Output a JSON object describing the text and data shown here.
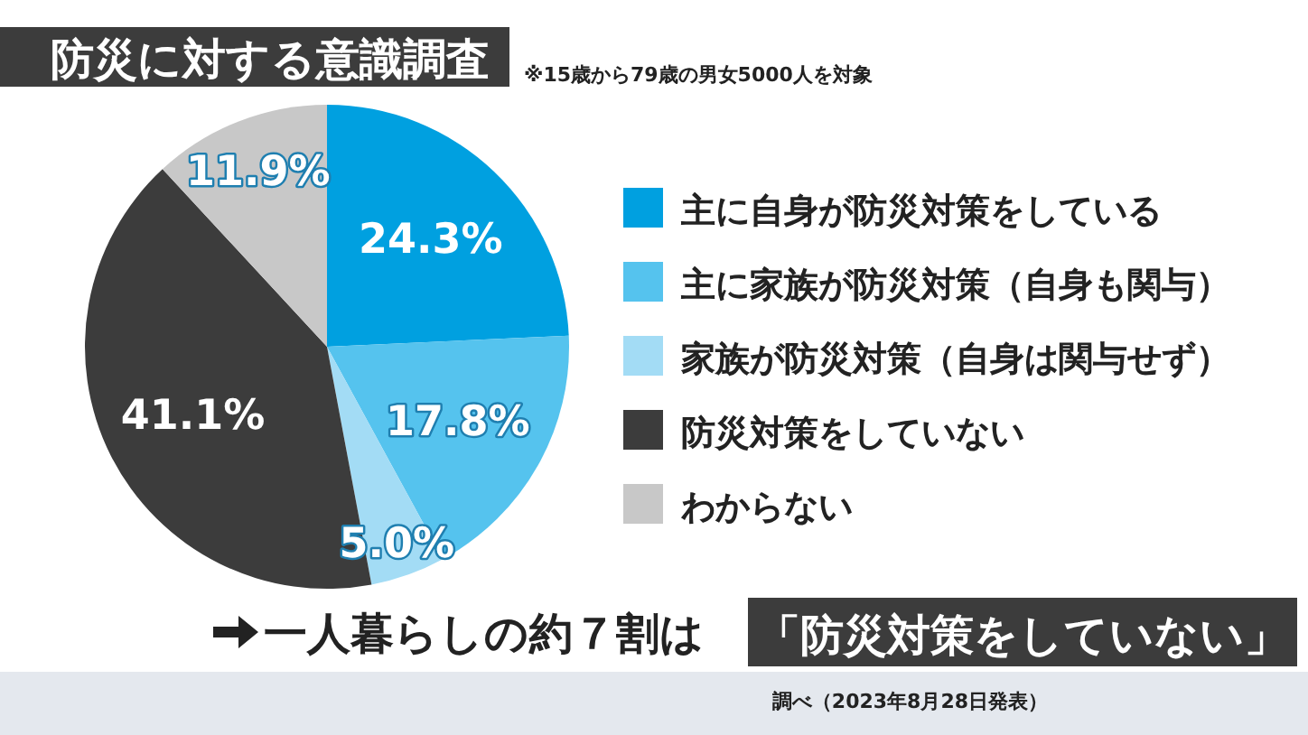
{
  "chart_data": {
    "type": "pie",
    "title": "防災に対する意識調査",
    "subtitle": "※15歳から79歳の男女5000人を対象",
    "categories": [
      "主に自身が防災対策をしている",
      "主に家族が防災対策（自身も関与）",
      "家族が防災対策（自身は関与せず）",
      "防災対策をしていない",
      "わからない"
    ],
    "values": [
      24.3,
      17.8,
      5.0,
      41.1,
      11.9
    ],
    "value_labels": [
      "24.3%",
      "17.8%",
      "5.0%",
      "41.1%",
      "11.9%"
    ],
    "colors": [
      "#00a0e0",
      "#55c3ee",
      "#a3dcf5",
      "#3c3c3c",
      "#c8c8c8"
    ],
    "legend": "right",
    "annotations": [
      "一人暮らしの約７割は",
      "「防災対策をしていない」",
      "調べ（2023年8月28日発表）"
    ]
  }
}
